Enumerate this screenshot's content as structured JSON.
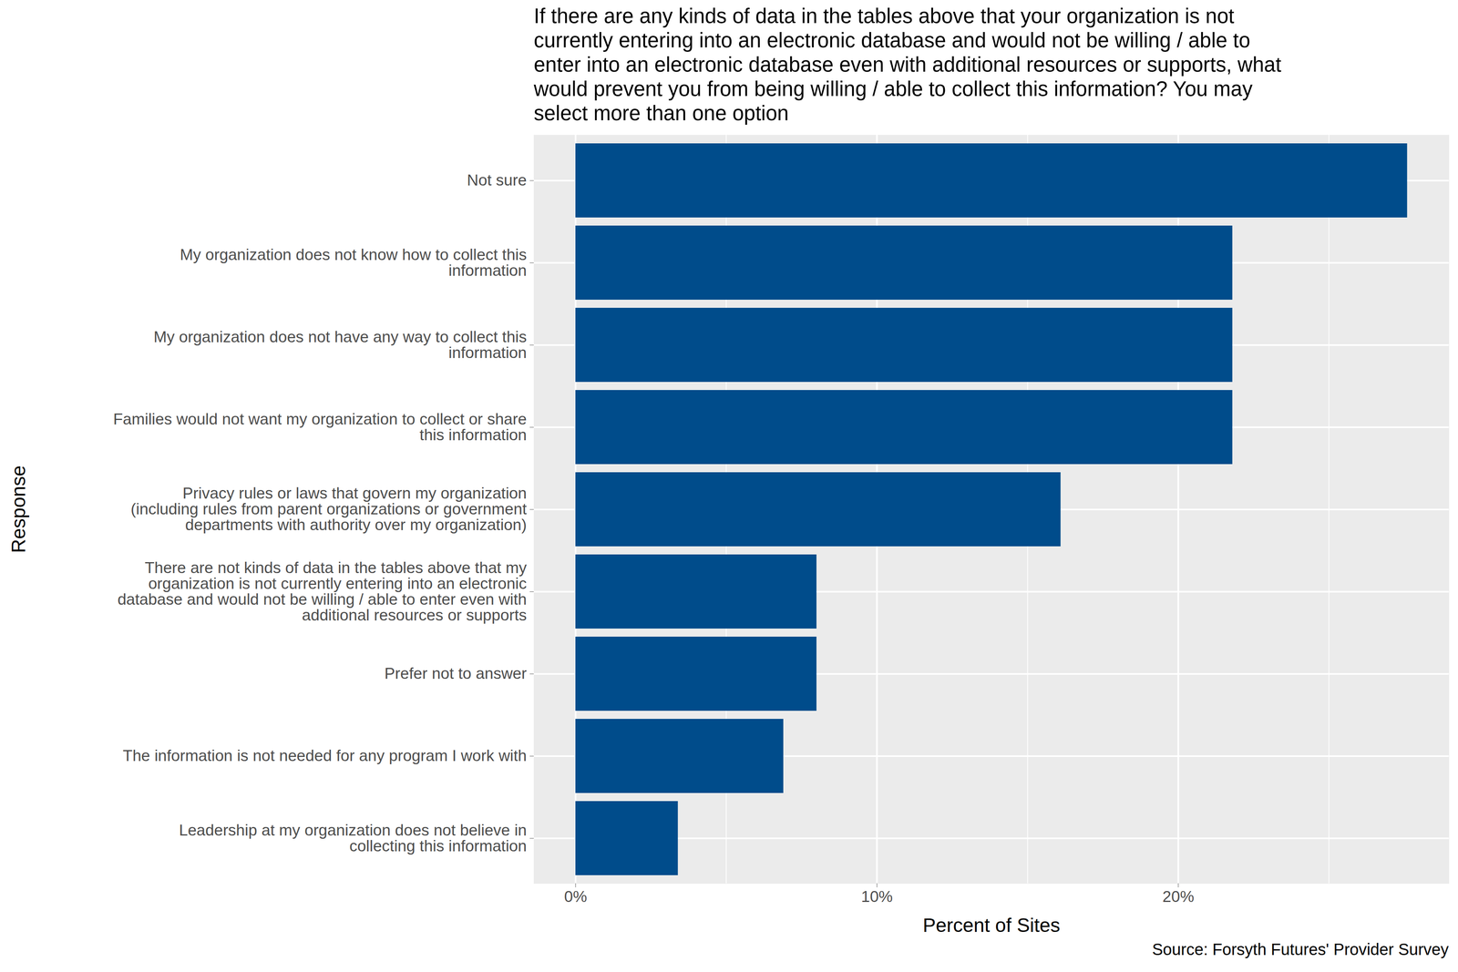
{
  "chart_data": {
    "type": "bar",
    "orientation": "horizontal",
    "title": "If there are any kinds of data in the tables above that your organization is not\ncurrently entering into an electronic database and would not be willing / able to\nenter into an electronic database even with additional resources or supports, what\nwould prevent you from being willing / able to collect this information? You may\nselect more than one option",
    "x_label": "Percent of Sites",
    "y_label": "Response",
    "caption": "Source: Forsyth Futures' Provider Survey",
    "categories": [
      "Not sure",
      "My organization does not know how to collect this\ninformation",
      "My organization does not have any way to collect this\ninformation",
      "Families would not want my organization to collect or share\nthis information",
      "Privacy rules or laws that govern my organization\n(including rules from parent organizations or government\ndepartments with authority over my organization)",
      "There are not kinds of data in the tables above that my\norganization is not currently entering into an electronic\ndatabase and would not be willing / able to enter even with\nadditional resources or supports",
      "Prefer not to answer",
      "The information is not needed for any program I work with",
      "Leadership at my organization does not believe in\ncollecting this information"
    ],
    "values": [
      27.6,
      21.8,
      21.8,
      21.8,
      16.1,
      8.0,
      8.0,
      6.9,
      3.4
    ],
    "color": "#004c8b",
    "xlim": [
      -1.38,
      28.98
    ],
    "xticks": [
      {
        "value": 0,
        "label": "0%"
      },
      {
        "value": 10,
        "label": "10%"
      },
      {
        "value": 20,
        "label": "20%"
      }
    ],
    "grid": true
  }
}
